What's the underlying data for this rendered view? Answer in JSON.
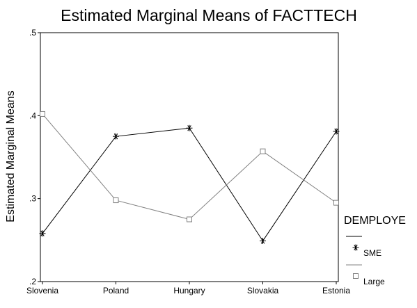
{
  "chart_data": {
    "type": "line",
    "title": "Estimated Marginal Means of FACTTECH",
    "xlabel": "",
    "ylabel": "Estimated Marginal Means",
    "categories": [
      "Slovenia",
      "Poland",
      "Hungary",
      "Slovakia",
      "Estonia"
    ],
    "ylim": [
      0.2,
      0.5
    ],
    "yticks": [
      0.2,
      0.3,
      0.4,
      0.5
    ],
    "ytick_labels": [
      ".2",
      ".3",
      ".4",
      ".5"
    ],
    "grid": false,
    "legend": {
      "title": "DEMPLOYE",
      "placement": "right"
    },
    "series": [
      {
        "name": "SME",
        "values": [
          0.258,
          0.375,
          0.385,
          0.249,
          0.381
        ],
        "color": "#000000",
        "marker": "asterisk"
      },
      {
        "name": "Large",
        "values": [
          0.402,
          0.298,
          0.275,
          0.357,
          0.295
        ],
        "color": "#808080",
        "marker": "square"
      }
    ]
  }
}
